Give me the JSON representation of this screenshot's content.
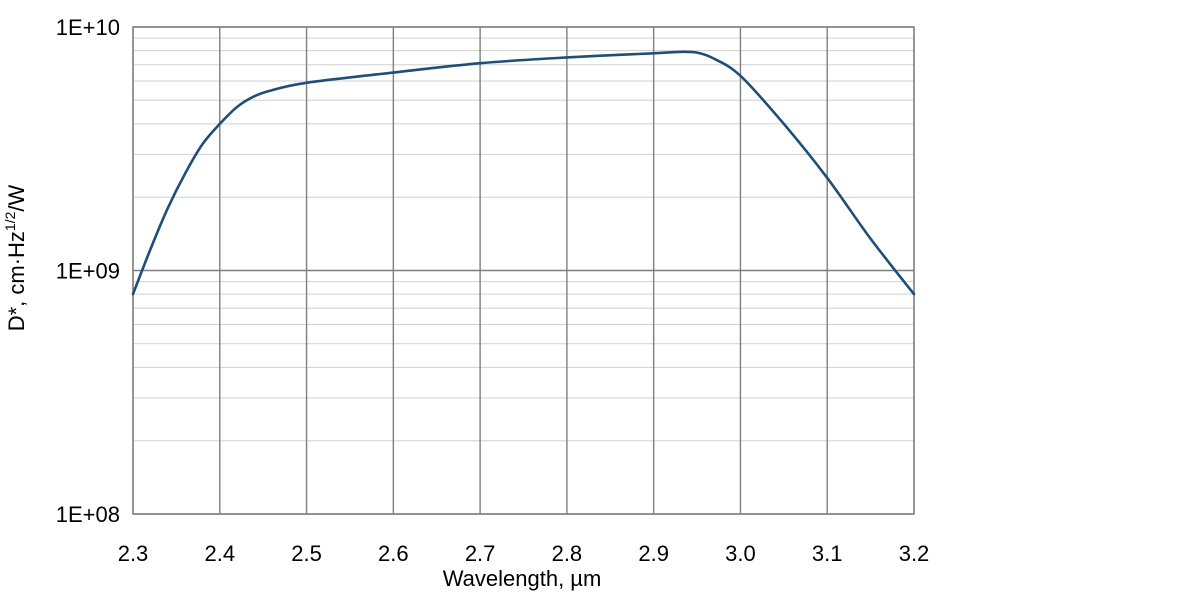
{
  "chart_data": {
    "type": "line",
    "title": "",
    "xlabel": "Wavelength, µm",
    "ylabel": {
      "prefix": "D*, cm·Hz",
      "superscript": "1/2",
      "suffix": "/W"
    },
    "xlim": [
      2.3,
      3.2
    ],
    "ylim": [
      100000000,
      10000000000
    ],
    "yscale": "log",
    "grid": true,
    "x_ticks": [
      2.3,
      2.4,
      2.5,
      2.6,
      2.7,
      2.8,
      2.9,
      3.0,
      3.1,
      3.2
    ],
    "x_tick_labels": [
      "2.3",
      "2.4",
      "2.5",
      "2.6",
      "2.7",
      "2.8",
      "2.9",
      "3.0",
      "3.1",
      "3.2"
    ],
    "y_ticks": [
      100000000,
      1000000000,
      10000000000
    ],
    "y_tick_labels": [
      "1E+08",
      "1E+09",
      "1E+10"
    ],
    "series": [
      {
        "name": "D*",
        "color": "#1f4e79",
        "x": [
          2.3,
          2.32,
          2.34,
          2.36,
          2.38,
          2.4,
          2.42,
          2.44,
          2.46,
          2.5,
          2.6,
          2.7,
          2.8,
          2.9,
          2.93,
          2.95,
          2.97,
          3.0,
          3.05,
          3.1,
          3.15,
          3.2
        ],
        "y": [
          800000000,
          1220000000,
          1800000000,
          2500000000,
          3300000000,
          4000000000,
          4700000000,
          5200000000,
          5500000000,
          5900000000,
          6500000000,
          7100000000,
          7500000000,
          7800000000,
          7900000000,
          7850000000,
          7400000000,
          6300000000,
          4000000000,
          2400000000,
          1350000000,
          800000000
        ]
      }
    ]
  },
  "colors": {
    "line": "#1f4e79",
    "major_grid": "#7f7f7f",
    "minor_grid": "#d0d0d0",
    "axis": "#7f7f7f"
  }
}
